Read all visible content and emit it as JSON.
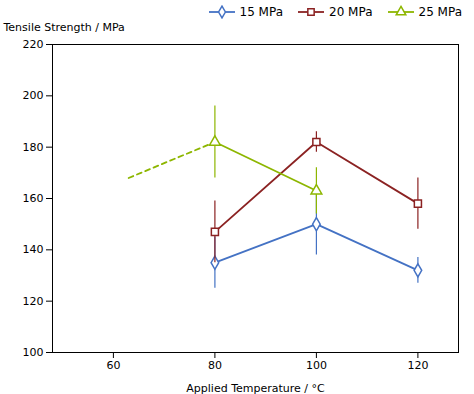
{
  "chart_data": {
    "type": "line",
    "x": [
      80,
      100,
      120
    ],
    "series": [
      {
        "name": "15 MPa",
        "color": "#4472C4",
        "values": [
          135,
          150,
          132
        ],
        "yerr": [
          10,
          12,
          5
        ],
        "marker": "diamond",
        "line_style": "solid"
      },
      {
        "name": "20 MPa",
        "color": "#8B2222",
        "values": [
          147,
          182,
          158
        ],
        "yerr": [
          12,
          4,
          10
        ],
        "marker": "square",
        "line_style": "solid"
      },
      {
        "name": "25 MPa",
        "color": "#8DB600",
        "values": [
          182,
          163,
          null
        ],
        "yerr": [
          14,
          9,
          null
        ],
        "marker": "triangle",
        "line_style": "solid",
        "extension_x": [
          63,
          80
        ],
        "extension_values": [
          168,
          182
        ]
      }
    ],
    "xlabel": "Applied Temperature / °C",
    "ylabel": "Tensile Strength / MPa",
    "xlim": [
      48,
      128
    ],
    "ylim": [
      100,
      220
    ],
    "xticks": [
      60,
      80,
      100,
      120
    ],
    "yticks": [
      100,
      120,
      140,
      160,
      180,
      200,
      220
    ],
    "grid": false,
    "legend": "upper right"
  }
}
